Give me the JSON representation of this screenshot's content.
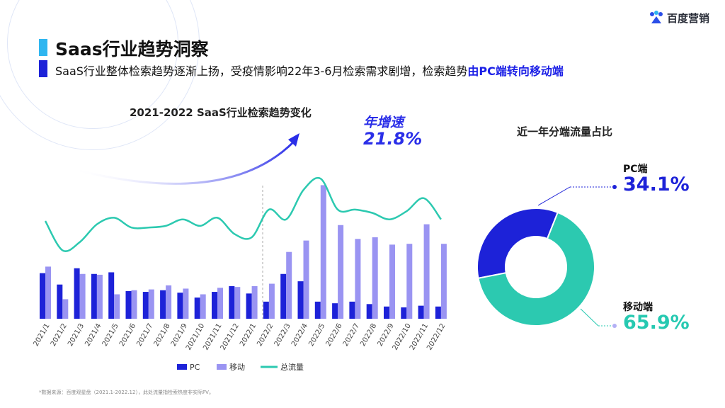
{
  "header": {
    "logo_text": "百度营销",
    "title": "Saas行业趋势洞察",
    "subtitle_prefix": "SaaS行业整体检索趋势逐渐上扬，受疫情影响22年3-6月检索需求剧增，检索趋势",
    "subtitle_highlight": "由PC端转向移动端"
  },
  "growth": {
    "label": "年增速",
    "value": "21.8%"
  },
  "footnote": "*数据来源：百度观星盘（2021.1-2022.12），此处流量指检索热度非实际PV。",
  "colors": {
    "pc": "#1d22d8",
    "mobile": "#9a94f2",
    "total": "#2cc9b0",
    "title_bar_top": "#2fb6f0",
    "title_bar_bottom": "#1d22d8"
  },
  "chart_data": [
    {
      "type": "bar",
      "title": "2021-2022 SaaS行业检索趋势变化",
      "categories": [
        "2021/1",
        "2021/2",
        "2021/3",
        "2021/4",
        "2021/5",
        "2021/6",
        "2021/7",
        "2021/8",
        "2021/9",
        "2021/10",
        "2021/11",
        "2021/12",
        "2022/1",
        "2022/2",
        "2022/3",
        "2022/4",
        "2022/5",
        "2022/6",
        "2022/7",
        "2022/8",
        "2022/9",
        "2022/10",
        "2022/11",
        "2022/12"
      ],
      "series": [
        {
          "name": "PC",
          "kind": "bar",
          "values": [
            28,
            21,
            31,
            27.5,
            28.5,
            17,
            16.5,
            17.5,
            16,
            13,
            16.5,
            20,
            15.5,
            10.5,
            27.5,
            23,
            10.5,
            9.5,
            10.5,
            9,
            7.5,
            7,
            8,
            7.5
          ]
        },
        {
          "name": "移动",
          "kind": "bar",
          "values": [
            32,
            12,
            27.5,
            27,
            15,
            17.5,
            18,
            20.5,
            18.5,
            15,
            19,
            19.5,
            20,
            21.5,
            41,
            48,
            82,
            57.5,
            49,
            50,
            45.5,
            46,
            58,
            46
          ]
        },
        {
          "name": "总流量",
          "kind": "line",
          "values": [
            60,
            42,
            47,
            58,
            62,
            56,
            56,
            57,
            61,
            57,
            62,
            52,
            50,
            67,
            61,
            79,
            86,
            67,
            67,
            65,
            61,
            66,
            74,
            61
          ]
        }
      ],
      "legend_position": "bottom"
    },
    {
      "type": "pie",
      "title": "近一年分端流量占比",
      "slices": [
        {
          "label": "PC端",
          "value": 34.1,
          "display": "34.1%"
        },
        {
          "label": "移动端",
          "value": 65.9,
          "display": "65.9%"
        }
      ]
    }
  ]
}
